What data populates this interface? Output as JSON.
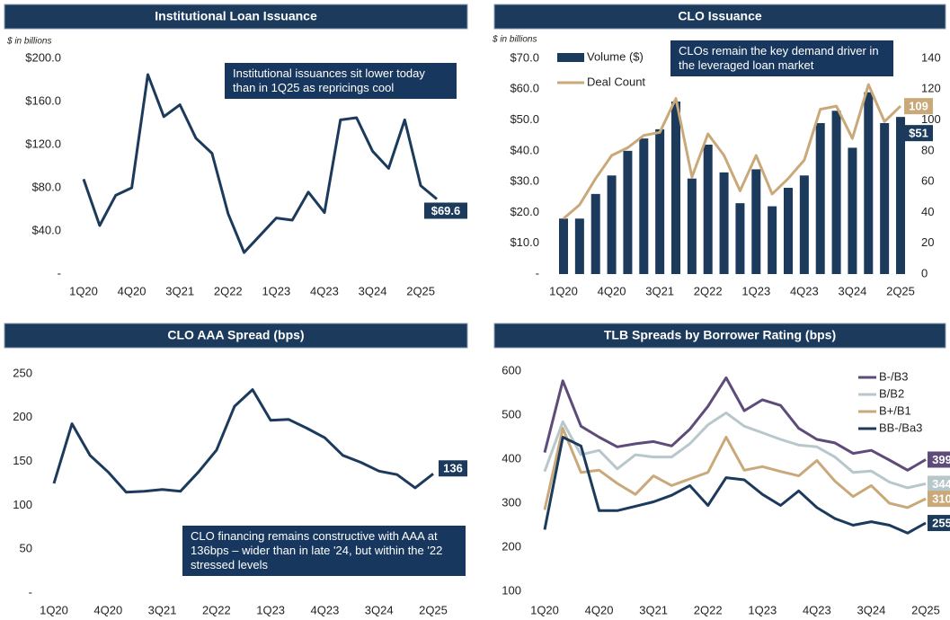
{
  "chart_data": [
    {
      "type": "line",
      "title": "Institutional Loan Issuance",
      "subtitle": "$ in billions",
      "annotation": "Institutional issuances sit lower today than in 1Q25 as repricings cool",
      "end_labels": true,
      "categories": [
        "1Q20",
        null,
        null,
        "4Q20",
        null,
        null,
        "3Q21",
        null,
        null,
        "2Q22",
        null,
        null,
        "1Q23",
        null,
        null,
        "4Q23",
        null,
        null,
        "3Q24",
        null,
        null,
        "2Q25",
        null
      ],
      "series": [
        {
          "color": "#1b3a5c",
          "values": [
            88,
            45,
            73,
            80,
            185,
            146,
            157,
            126,
            112,
            56,
            20,
            36,
            52,
            50,
            76,
            57,
            143,
            145,
            114,
            98,
            143,
            82,
            69.6
          ],
          "value_labels": [
            null,
            null,
            null,
            null,
            null,
            null,
            null,
            null,
            null,
            null,
            null,
            null,
            null,
            null,
            null,
            null,
            null,
            null,
            null,
            null,
            null,
            null,
            "$69.6"
          ]
        }
      ],
      "ylim": [
        0,
        200
      ],
      "yticks": [
        {
          "value": 0,
          "label": "-"
        },
        {
          "value": 40,
          "label": "$40.0"
        },
        {
          "value": 80,
          "label": "$80.0"
        },
        {
          "value": 120,
          "label": "$120.0"
        },
        {
          "value": 160,
          "label": "$160.0"
        },
        {
          "value": 200,
          "label": "$200.0"
        }
      ]
    },
    {
      "type": "bar",
      "title": "CLO Issuance",
      "subtitle": "$ in billions",
      "annotation": "CLOs remain the key demand driver in the leveraged loan market",
      "end_labels": true,
      "categories": [
        "1Q20",
        null,
        null,
        "4Q20",
        null,
        null,
        "3Q21",
        null,
        null,
        "2Q22",
        null,
        null,
        "1Q23",
        null,
        null,
        "4Q23",
        null,
        null,
        "3Q24",
        null,
        null,
        "2Q25"
      ],
      "series": [
        {
          "name": "Volume ($)",
          "type": "bar",
          "color": "#1b3a5c",
          "values": [
            18,
            18,
            26,
            32,
            40,
            44,
            47,
            56,
            31,
            42,
            33,
            23,
            34,
            22,
            28,
            32,
            49,
            53,
            41,
            59,
            49,
            51
          ],
          "value_labels": [
            null,
            null,
            null,
            null,
            null,
            null,
            null,
            null,
            null,
            null,
            null,
            null,
            null,
            null,
            null,
            null,
            null,
            null,
            null,
            null,
            null,
            "$51"
          ]
        },
        {
          "name": "Deal Count",
          "type": "line",
          "axis": "y2",
          "color": "#c9a97a",
          "values": [
            36,
            45,
            62,
            77,
            82,
            90,
            92,
            114,
            63,
            91,
            77,
            54,
            77,
            52,
            62,
            74,
            107,
            109,
            88,
            123,
            99,
            109
          ]
        }
      ],
      "ylim": [
        0,
        70
      ],
      "yticks": [
        {
          "value": 0,
          "label": "-"
        },
        {
          "value": 10,
          "label": "$10.0"
        },
        {
          "value": 20,
          "label": "$20.0"
        },
        {
          "value": 30,
          "label": "$30.0"
        },
        {
          "value": 40,
          "label": "$40.0"
        },
        {
          "value": 50,
          "label": "$50.0"
        },
        {
          "value": 60,
          "label": "$60.0"
        },
        {
          "value": 70,
          "label": "$70.0"
        }
      ],
      "y2lim": [
        0,
        140
      ],
      "y2ticks": [
        0,
        20,
        40,
        60,
        80,
        100,
        120,
        140
      ]
    },
    {
      "type": "line",
      "title": "CLO AAA Spread (bps)",
      "annotation": "CLO financing remains constructive with AAA at 136bps – wider than in late '24, but within the '22 stressed levels",
      "end_labels": true,
      "categories": [
        "1Q20",
        null,
        null,
        "4Q20",
        null,
        null,
        "3Q21",
        null,
        null,
        "2Q22",
        null,
        null,
        "1Q23",
        null,
        null,
        "4Q23",
        null,
        null,
        "3Q24",
        null,
        null,
        "2Q25"
      ],
      "series": [
        {
          "color": "#1b3a5c",
          "values": [
            125,
            193,
            157,
            138,
            115,
            116,
            118,
            116,
            138,
            163,
            213,
            232,
            197,
            198,
            188,
            177,
            157,
            149,
            139,
            135,
            120,
            136
          ]
        }
      ],
      "ylim": [
        0,
        250
      ],
      "yticks": [
        {
          "value": 0,
          "label": "-"
        },
        50,
        100,
        150,
        200,
        250
      ]
    },
    {
      "type": "line",
      "title": "TLB Spreads by Borrower Rating (bps)",
      "end_labels": true,
      "categories": [
        "1Q20",
        null,
        null,
        "4Q20",
        null,
        null,
        "3Q21",
        null,
        null,
        "2Q22",
        null,
        null,
        "1Q23",
        null,
        null,
        "4Q23",
        null,
        null,
        "3Q24",
        null,
        null,
        "2Q25"
      ],
      "series": [
        {
          "name": "B-/B3",
          "color": "#5e4b7a",
          "values": [
            415,
            578,
            475,
            450,
            428,
            435,
            440,
            430,
            468,
            520,
            585,
            510,
            535,
            522,
            470,
            445,
            437,
            413,
            420,
            398,
            375,
            399
          ]
        },
        {
          "name": "B/B2",
          "color": "#b8c7cc",
          "values": [
            372,
            485,
            410,
            420,
            378,
            410,
            405,
            405,
            435,
            478,
            505,
            475,
            460,
            445,
            432,
            428,
            405,
            370,
            373,
            348,
            335,
            344
          ]
        },
        {
          "name": "B+/B1",
          "color": "#c9a97a",
          "values": [
            285,
            470,
            370,
            375,
            345,
            320,
            362,
            340,
            355,
            370,
            450,
            375,
            383,
            372,
            362,
            397,
            350,
            315,
            340,
            300,
            290,
            310
          ]
        },
        {
          "name": "BB-/Ba3",
          "color": "#1b3a5c",
          "values": [
            240,
            450,
            430,
            283,
            283,
            293,
            303,
            318,
            340,
            295,
            358,
            353,
            320,
            295,
            328,
            290,
            265,
            250,
            258,
            250,
            232,
            255
          ]
        }
      ],
      "ylim": [
        100,
        600
      ],
      "yticks": [
        100,
        200,
        300,
        400,
        500,
        600
      ]
    }
  ]
}
